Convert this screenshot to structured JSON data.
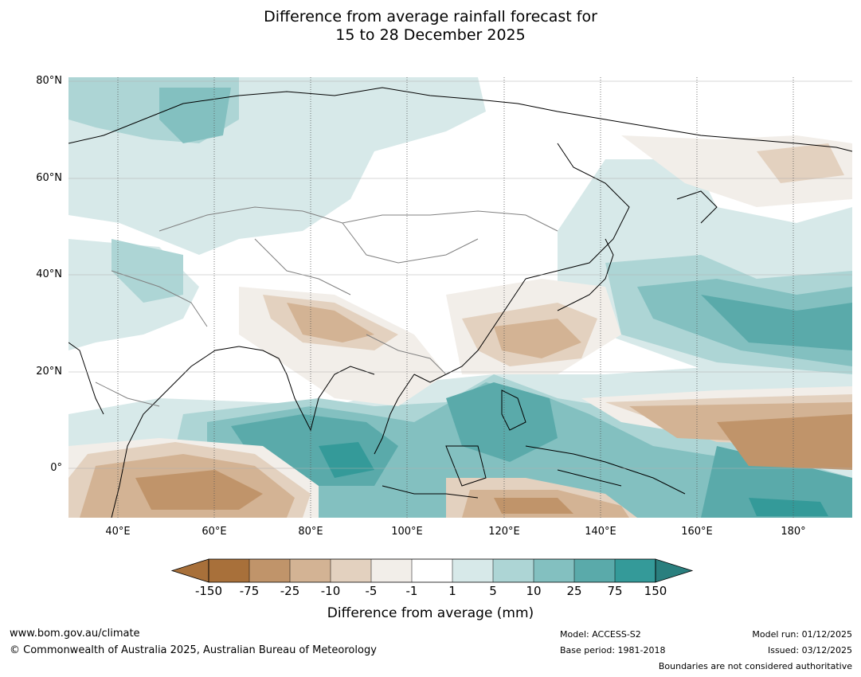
{
  "title_line1": "Difference from average rainfall forecast for",
  "title_line2": "15 to 28 December 2025",
  "lat_labels": [
    "80°N",
    "60°N",
    "40°N",
    "20°N",
    "0°"
  ],
  "lon_labels": [
    "40°E",
    "60°E",
    "80°E",
    "100°E",
    "120°E",
    "140°E",
    "160°E",
    "180°"
  ],
  "colorbar": {
    "ticks": [
      "-150",
      "-75",
      "-25",
      "-10",
      "-5",
      "-1",
      "1",
      "5",
      "10",
      "25",
      "75",
      "150"
    ],
    "colors": [
      "#a8703a",
      "#c0946a",
      "#d3b394",
      "#e3d1bf",
      "#f2eee9",
      "#ffffff",
      "#d7e9e9",
      "#add5d5",
      "#83c0c0",
      "#5aaaaa",
      "#349a99",
      "#2a7f7e"
    ],
    "title": "Difference from average (mm)"
  },
  "footer": {
    "url": "www.bom.gov.au/climate",
    "copyright": "© Commonwealth of Australia 2025, Australian Bureau of Meteorology",
    "model": "Model: ACCESS-S2",
    "base_period": "Base period: 1981-2018",
    "model_run": "Model run: 01/12/2025",
    "issued": "Issued: 03/12/2025",
    "boundaries": "Boundaries are not considered authoritative"
  }
}
